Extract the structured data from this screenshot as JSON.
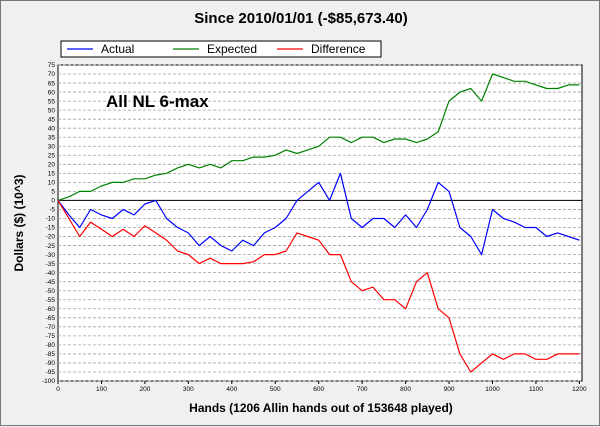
{
  "chart_data": {
    "type": "line",
    "title": "Since 2010/01/01 (-$85,673.40)",
    "xlabel": "Hands (1206 Allin hands out of 153648 played)",
    "ylabel": "Dollars ($) (10^3)",
    "annotation": "All NL 6-max",
    "xlim": [
      0,
      1206
    ],
    "ylim": [
      -100,
      75
    ],
    "x_ticks": [
      0,
      100,
      200,
      300,
      400,
      500,
      600,
      700,
      800,
      900,
      1000,
      1100,
      1200
    ],
    "y_ticks": [
      75,
      70,
      65,
      60,
      55,
      50,
      45,
      40,
      35,
      30,
      25,
      20,
      15,
      10,
      5,
      0,
      -5,
      -10,
      -15,
      -20,
      -25,
      -30,
      -35,
      -40,
      -45,
      -50,
      -55,
      -60,
      -65,
      -70,
      -75,
      -80,
      -85,
      -90,
      -95,
      -100
    ],
    "grid": true,
    "legend_position": "top",
    "x": [
      0,
      25,
      50,
      75,
      100,
      125,
      150,
      175,
      200,
      225,
      250,
      275,
      300,
      325,
      350,
      375,
      400,
      425,
      450,
      475,
      500,
      525,
      550,
      575,
      600,
      625,
      650,
      675,
      700,
      725,
      750,
      775,
      800,
      825,
      850,
      875,
      900,
      925,
      950,
      975,
      1000,
      1025,
      1050,
      1075,
      1100,
      1125,
      1150,
      1175,
      1200
    ],
    "series": [
      {
        "name": "Actual",
        "color": "#0000ff",
        "values": [
          0,
          -8,
          -15,
          -5,
          -8,
          -10,
          -5,
          -8,
          -2,
          0,
          -10,
          -15,
          -18,
          -25,
          -20,
          -25,
          -28,
          -22,
          -25,
          -18,
          -15,
          -10,
          0,
          5,
          10,
          0,
          15,
          -10,
          -15,
          -10,
          -10,
          -15,
          -8,
          -15,
          -5,
          10,
          5,
          -15,
          -20,
          -30,
          -5,
          -10,
          -12,
          -15,
          -15,
          -20,
          -18,
          -20,
          -22
        ]
      },
      {
        "name": "Expected",
        "color": "#008000",
        "values": [
          0,
          2,
          5,
          5,
          8,
          10,
          10,
          12,
          12,
          14,
          15,
          18,
          20,
          18,
          20,
          18,
          22,
          22,
          24,
          24,
          25,
          28,
          26,
          28,
          30,
          35,
          35,
          32,
          35,
          35,
          32,
          34,
          34,
          32,
          34,
          38,
          55,
          60,
          62,
          55,
          70,
          68,
          66,
          66,
          64,
          62,
          62,
          64,
          64
        ]
      },
      {
        "name": "Difference",
        "color": "#ff0000",
        "values": [
          0,
          -10,
          -20,
          -12,
          -16,
          -20,
          -16,
          -20,
          -14,
          -18,
          -22,
          -28,
          -30,
          -35,
          -32,
          -35,
          -35,
          -35,
          -34,
          -30,
          -30,
          -28,
          -18,
          -20,
          -22,
          -30,
          -30,
          -45,
          -50,
          -48,
          -55,
          -55,
          -60,
          -45,
          -40,
          -60,
          -65,
          -85,
          -95,
          -90,
          -85,
          -88,
          -85,
          -85,
          -88,
          -88,
          -85,
          -85,
          -85
        ]
      }
    ]
  }
}
